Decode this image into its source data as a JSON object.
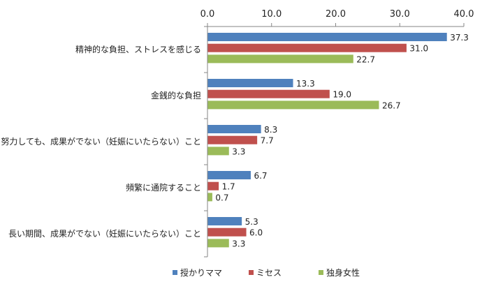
{
  "chart_data": {
    "type": "bar",
    "orientation": "horizontal",
    "xlim": [
      0,
      40
    ],
    "xticks": [
      "0.0",
      "10.0",
      "20.0",
      "30.0",
      "40.0"
    ],
    "grid": false,
    "legend_position": "bottom",
    "categories": [
      "精神的な負担、ストレスを感じる",
      "金銭的な負担",
      "努力しても、成果がでない（妊娠にいたらない）こと",
      "頻繁に通院すること",
      "長い期間、成果がでない（妊娠にいたらない）こと"
    ],
    "series": [
      {
        "name": "授かりママ",
        "color": "#4f81bd",
        "values": [
          37.3,
          13.3,
          8.3,
          6.7,
          5.3
        ],
        "labels": [
          "37.3",
          "13.3",
          "8.3",
          "6.7",
          "5.3"
        ]
      },
      {
        "name": "ミセス",
        "color": "#c0504d",
        "values": [
          31.0,
          19.0,
          7.7,
          1.7,
          6.0
        ],
        "labels": [
          "31.0",
          "19.0",
          "7.7",
          "1.7",
          "6.0"
        ]
      },
      {
        "name": "独身女性",
        "color": "#9bbb59",
        "values": [
          22.7,
          26.7,
          3.3,
          0.7,
          3.3
        ],
        "labels": [
          "22.7",
          "26.7",
          "3.3",
          "0.7",
          "3.3"
        ]
      }
    ]
  }
}
